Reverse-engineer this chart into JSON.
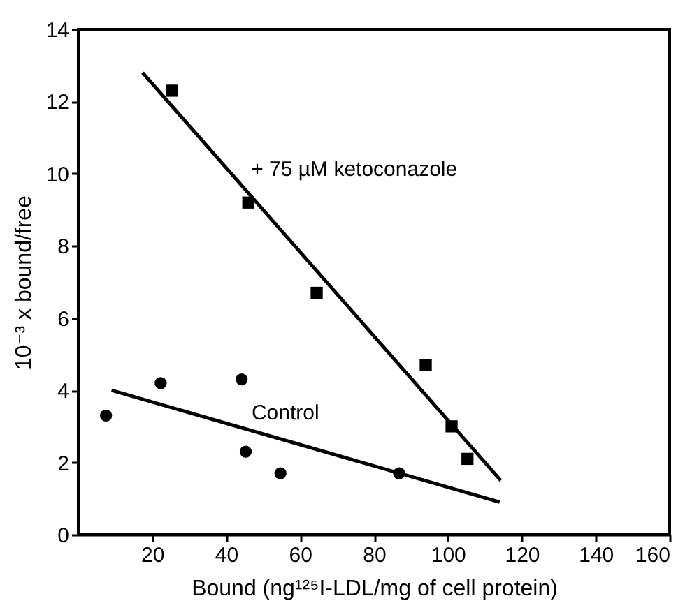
{
  "chart_data": {
    "type": "scatter",
    "xlabel": "Bound (ng¹²⁵I-LDL/mg of cell protein)",
    "ylabel": "10⁻³ x bound/free",
    "xlim": [
      0,
      160
    ],
    "xticks": [
      20,
      40,
      60,
      80,
      100,
      120,
      140,
      160
    ],
    "ylim": [
      0,
      14
    ],
    "yticks": [
      0,
      2,
      4,
      6,
      8,
      10,
      12,
      14
    ],
    "grid": false,
    "series": [
      {
        "name": "+ 75 µM ketoconazole",
        "marker": "square",
        "color": "#000000",
        "x": [
          25.3,
          46,
          64.5,
          94,
          101,
          105.3
        ],
        "values": [
          12.3,
          9.2,
          6.7,
          4.7,
          3.0,
          2.1
        ]
      },
      {
        "type": "line",
        "color": "#000000",
        "line_style": "solid",
        "x": [
          17.4,
          114.3
        ],
        "values": [
          12.8,
          1.5
        ]
      },
      {
        "name": "Control",
        "marker": "circle",
        "color": "#000000",
        "x": [
          7.5,
          22.3,
          44.2,
          45.3,
          54.7,
          86.8
        ],
        "values": [
          3.3,
          4.2,
          4.3,
          2.3,
          1.7,
          1.7
        ]
      },
      {
        "type": "line",
        "color": "#000000",
        "line_style": "solid",
        "x": [
          9,
          114
        ],
        "values": [
          4.0,
          0.9
        ]
      }
    ]
  }
}
